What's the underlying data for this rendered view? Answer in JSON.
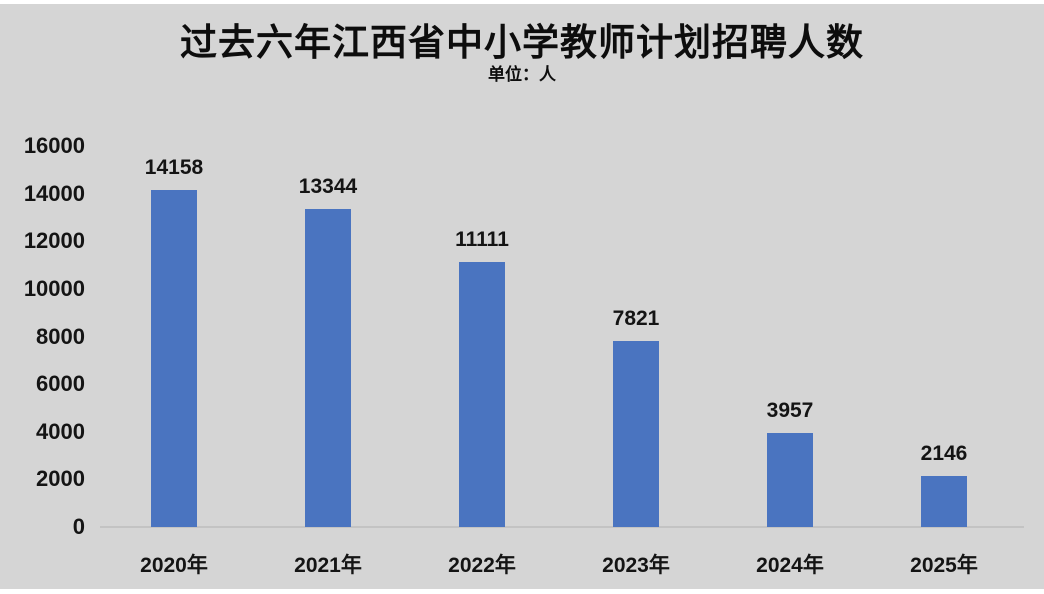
{
  "header": {
    "title": "过去六年江西省中小学教师计划招聘人数",
    "subtitle": "单位：人"
  },
  "chart_data": {
    "type": "bar",
    "title": "过去六年江西省中小学教师计划招聘人数",
    "subtitle": "单位：人",
    "categories": [
      "2020年",
      "2021年",
      "2022年",
      "2023年",
      "2024年",
      "2025年"
    ],
    "values": [
      14158,
      13344,
      11111,
      7821,
      3957,
      2146
    ],
    "data_labels": [
      14158,
      13344,
      11111,
      7821,
      3957,
      2146
    ],
    "xlabel": "",
    "ylabel": "",
    "ylim": [
      0,
      16000
    ],
    "yticks": [
      0,
      2000,
      4000,
      6000,
      8000,
      10000,
      12000,
      14000,
      16000
    ],
    "grid": false,
    "legend": false,
    "colors": {
      "bar": "#4a74c0",
      "background": "#d5d5d5",
      "edge_strips": "#ffffff",
      "axis_line": "#c3c3c3",
      "text": "#141414"
    }
  }
}
